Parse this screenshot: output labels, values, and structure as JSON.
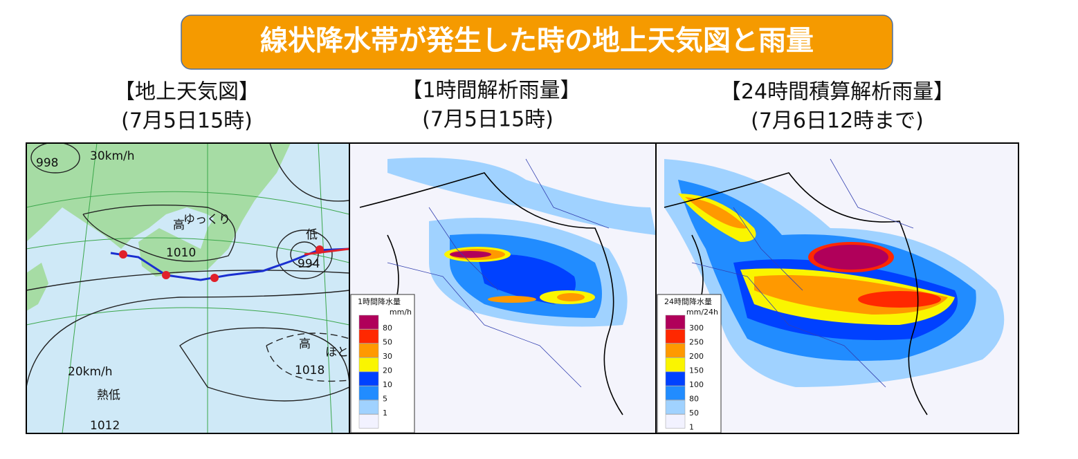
{
  "title": "線状降水帯が発生した時の地上天気図と雨量",
  "panels": [
    {
      "heading": "【地上天気図】",
      "subheading": "(7月5日15時)"
    },
    {
      "heading": "【1時間解析雨量】",
      "subheading": "(7月5日15時)"
    },
    {
      "heading": "【24時間積算解析雨量】",
      "subheading": "(7月6日12時まで)"
    }
  ],
  "weather_map": {
    "labels": [
      "998",
      "30km/h",
      "高",
      "ゆっくり",
      "1010",
      "低",
      "994",
      "高",
      "1018",
      "ほとん",
      "20km/h",
      "熱低",
      "1012"
    ]
  },
  "legends": [
    {
      "title": "1時間降水量",
      "unit": "mm/h",
      "items": [
        {
          "label": "80",
          "color": "#b0005a"
        },
        {
          "label": "50",
          "color": "#ff2800"
        },
        {
          "label": "30",
          "color": "#ff9900"
        },
        {
          "label": "20",
          "color": "#faf500"
        },
        {
          "label": "10",
          "color": "#0041ff"
        },
        {
          "label": "5",
          "color": "#218cff"
        },
        {
          "label": "1",
          "color": "#a0d2ff"
        },
        {
          "label": "",
          "color": "#f2f2ff"
        }
      ]
    },
    {
      "title": "24時間降水量",
      "unit": "mm/24h",
      "items": [
        {
          "label": "300",
          "color": "#b0005a"
        },
        {
          "label": "250",
          "color": "#ff2800"
        },
        {
          "label": "200",
          "color": "#ff9900"
        },
        {
          "label": "150",
          "color": "#faf500"
        },
        {
          "label": "100",
          "color": "#0041ff"
        },
        {
          "label": "80",
          "color": "#218cff"
        },
        {
          "label": "50",
          "color": "#a0d2ff"
        },
        {
          "label": "1",
          "color": "#f2f2ff"
        }
      ]
    }
  ]
}
